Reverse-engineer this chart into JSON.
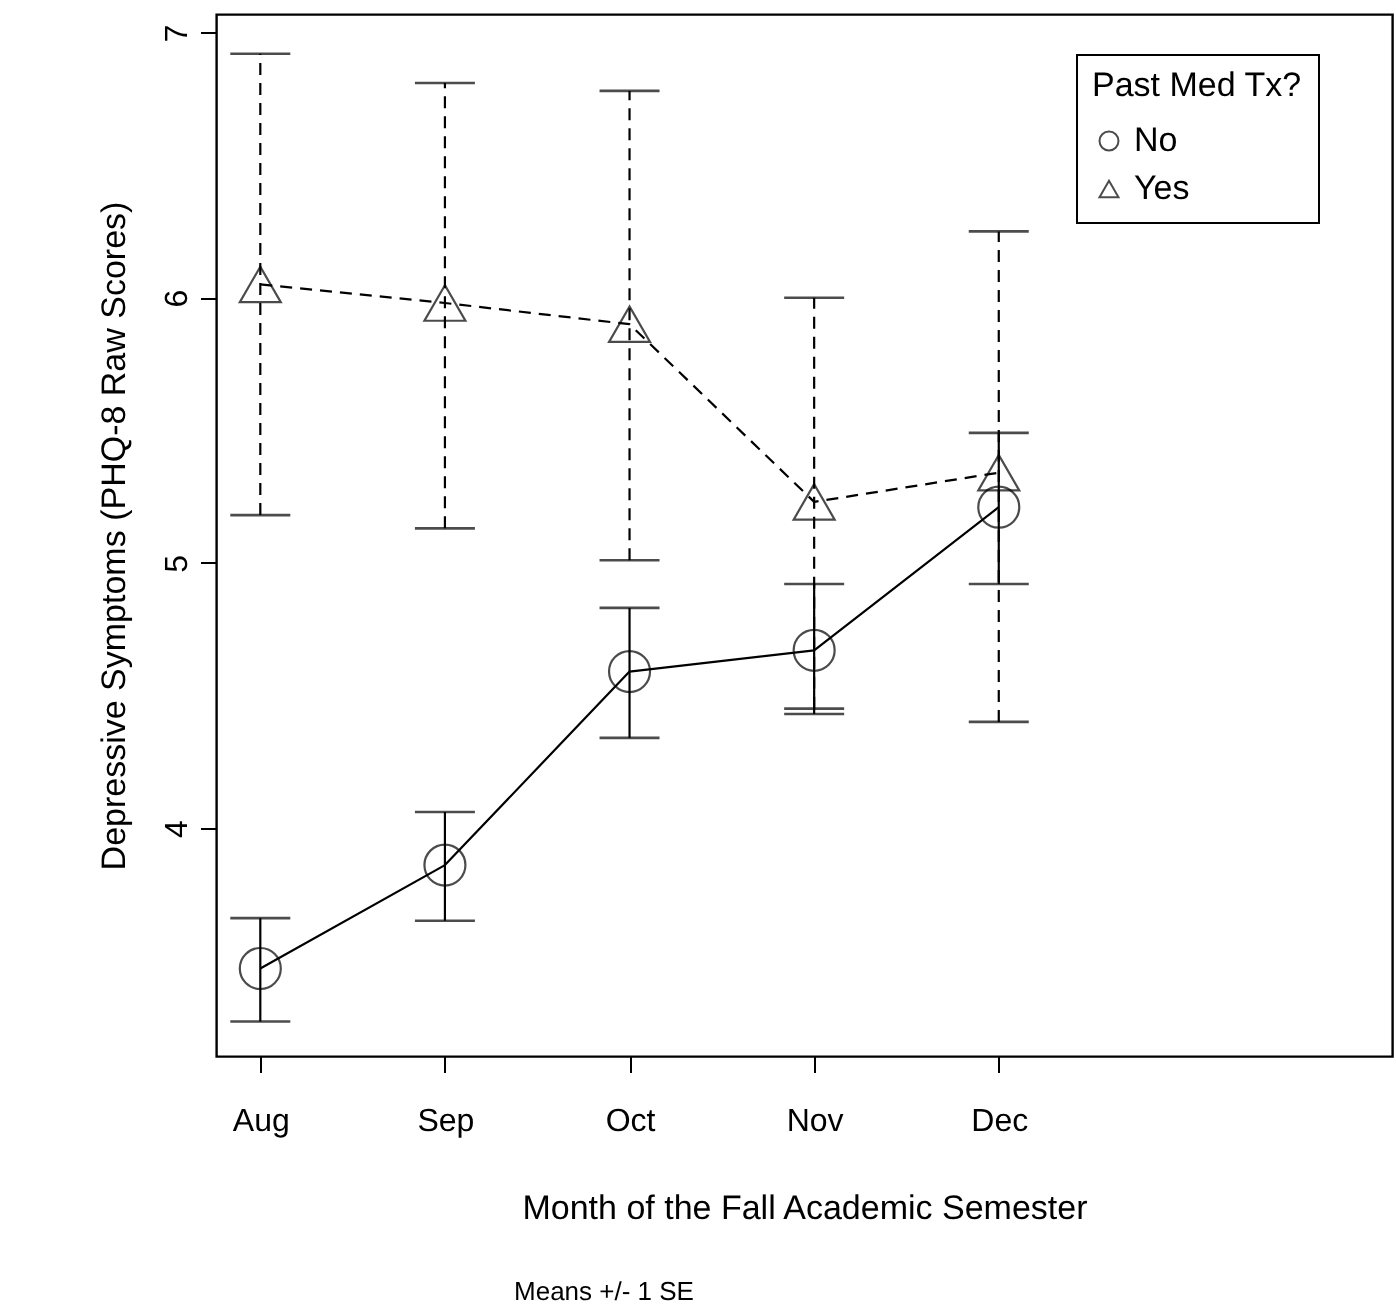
{
  "chart_data": {
    "type": "line",
    "categories": [
      "Aug",
      "Sep",
      "Oct",
      "Nov",
      "Dec"
    ],
    "ylim": [
      3.14,
      7.07
    ],
    "yticks": [
      4,
      5,
      6,
      7
    ],
    "xlabel": "Month of the Fall Academic Semester",
    "ylabel": "Depressive Symptoms (PHQ-8 Raw Scores)",
    "annotations": [
      "Means +/- 1 SE"
    ],
    "legend_title": "Past Med Tx?",
    "legend": "top right",
    "grid": false,
    "series": [
      {
        "name": "No",
        "color": "#000000",
        "marker": "circle",
        "line_style": "solid",
        "values": [
          3.47,
          3.86,
          4.59,
          4.67,
          5.21
        ],
        "errors": [
          [
            3.27,
            3.66
          ],
          [
            3.65,
            4.06
          ],
          [
            4.34,
            4.83
          ],
          [
            4.43,
            4.92
          ],
          [
            4.92,
            5.49
          ]
        ]
      },
      {
        "name": "Yes",
        "color": "#000000",
        "marker": "triangle",
        "line_style": "dashed",
        "values": [
          6.05,
          5.98,
          5.9,
          5.23,
          5.34
        ],
        "errors": [
          [
            5.18,
            6.92
          ],
          [
            5.13,
            6.81
          ],
          [
            5.01,
            6.78
          ],
          [
            4.45,
            6.0
          ],
          [
            4.4,
            6.25
          ]
        ]
      }
    ]
  }
}
